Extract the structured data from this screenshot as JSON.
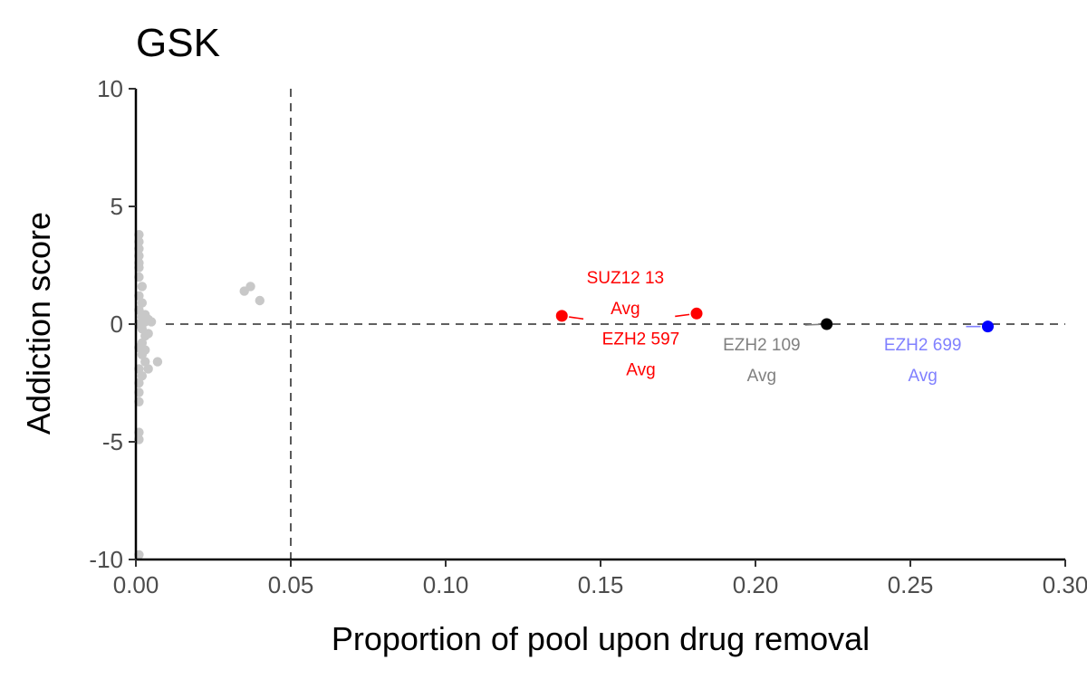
{
  "chart_data": {
    "type": "scatter",
    "title": "GSK",
    "xlabel": "Proportion of pool upon drug removal",
    "ylabel": "Addiction score",
    "xlim": [
      0,
      0.3
    ],
    "ylim": [
      -10,
      10
    ],
    "xticks": [
      0.0,
      0.05,
      0.1,
      0.15,
      0.2,
      0.25,
      0.3
    ],
    "xtick_labels": [
      "0.00",
      "0.05",
      "0.10",
      "0.15",
      "0.20",
      "0.25",
      "0.30"
    ],
    "yticks": [
      -10,
      -5,
      0,
      5,
      10
    ],
    "ytick_labels": [
      "-10",
      "-5",
      "0",
      "5",
      "10"
    ],
    "grid": false,
    "reference_lines": [
      {
        "orientation": "vertical",
        "value": 0.05,
        "style": "dashed"
      },
      {
        "orientation": "horizontal",
        "value": 0,
        "style": "dashed"
      }
    ],
    "background_points": {
      "color": "#c8c8c8",
      "points": [
        [
          0.001,
          3.8
        ],
        [
          0.001,
          3.5
        ],
        [
          0.001,
          3.2
        ],
        [
          0.001,
          2.9
        ],
        [
          0.001,
          2.6
        ],
        [
          0.001,
          2.4
        ],
        [
          0.001,
          2.0
        ],
        [
          0.002,
          1.6
        ],
        [
          0.001,
          1.2
        ],
        [
          0.002,
          0.9
        ],
        [
          0.001,
          0.6
        ],
        [
          0.002,
          0.3
        ],
        [
          0.003,
          0.1
        ],
        [
          0.001,
          0.0
        ],
        [
          0.002,
          -0.2
        ],
        [
          0.003,
          -0.5
        ],
        [
          0.002,
          -0.8
        ],
        [
          0.001,
          -1.0
        ],
        [
          0.002,
          -1.3
        ],
        [
          0.003,
          -1.6
        ],
        [
          0.001,
          -1.9
        ],
        [
          0.002,
          -2.2
        ],
        [
          0.001,
          -2.5
        ],
        [
          0.001,
          -2.9
        ],
        [
          0.001,
          -3.3
        ],
        [
          0.001,
          -4.6
        ],
        [
          0.001,
          -4.9
        ],
        [
          0.001,
          -9.8
        ],
        [
          0.004,
          0.2
        ],
        [
          0.005,
          0.1
        ],
        [
          0.004,
          -0.4
        ],
        [
          0.003,
          -1.1
        ],
        [
          0.004,
          -1.9
        ],
        [
          0.007,
          -1.6
        ],
        [
          0.003,
          0.4
        ],
        [
          0.035,
          1.4
        ],
        [
          0.037,
          1.6
        ],
        [
          0.04,
          1.0
        ]
      ]
    },
    "highlighted_points": [
      {
        "x": 0.1375,
        "y": 0.35,
        "color": "#ff0000",
        "label_lines": [
          "SUZ12 13",
          "Avg"
        ],
        "label_color": "#ff0000",
        "label_x": 0.158,
        "label_y": 1.35
      },
      {
        "x": 0.181,
        "y": 0.45,
        "color": "#ff0000",
        "label_lines": [
          "EZH2 597",
          "Avg"
        ],
        "label_color": "#ff0000",
        "label_x": 0.163,
        "label_y": -1.25
      },
      {
        "x": 0.223,
        "y": 0.0,
        "color": "#000000",
        "label_lines": [
          "EZH2 109",
          "Avg"
        ],
        "label_color": "#808080",
        "label_x": 0.202,
        "label_y": -1.5
      },
      {
        "x": 0.275,
        "y": -0.1,
        "color": "#0000ff",
        "label_lines": [
          "EZH2 699",
          "Avg"
        ],
        "label_color": "#8080ff",
        "label_x": 0.254,
        "label_y": -1.5
      }
    ]
  }
}
